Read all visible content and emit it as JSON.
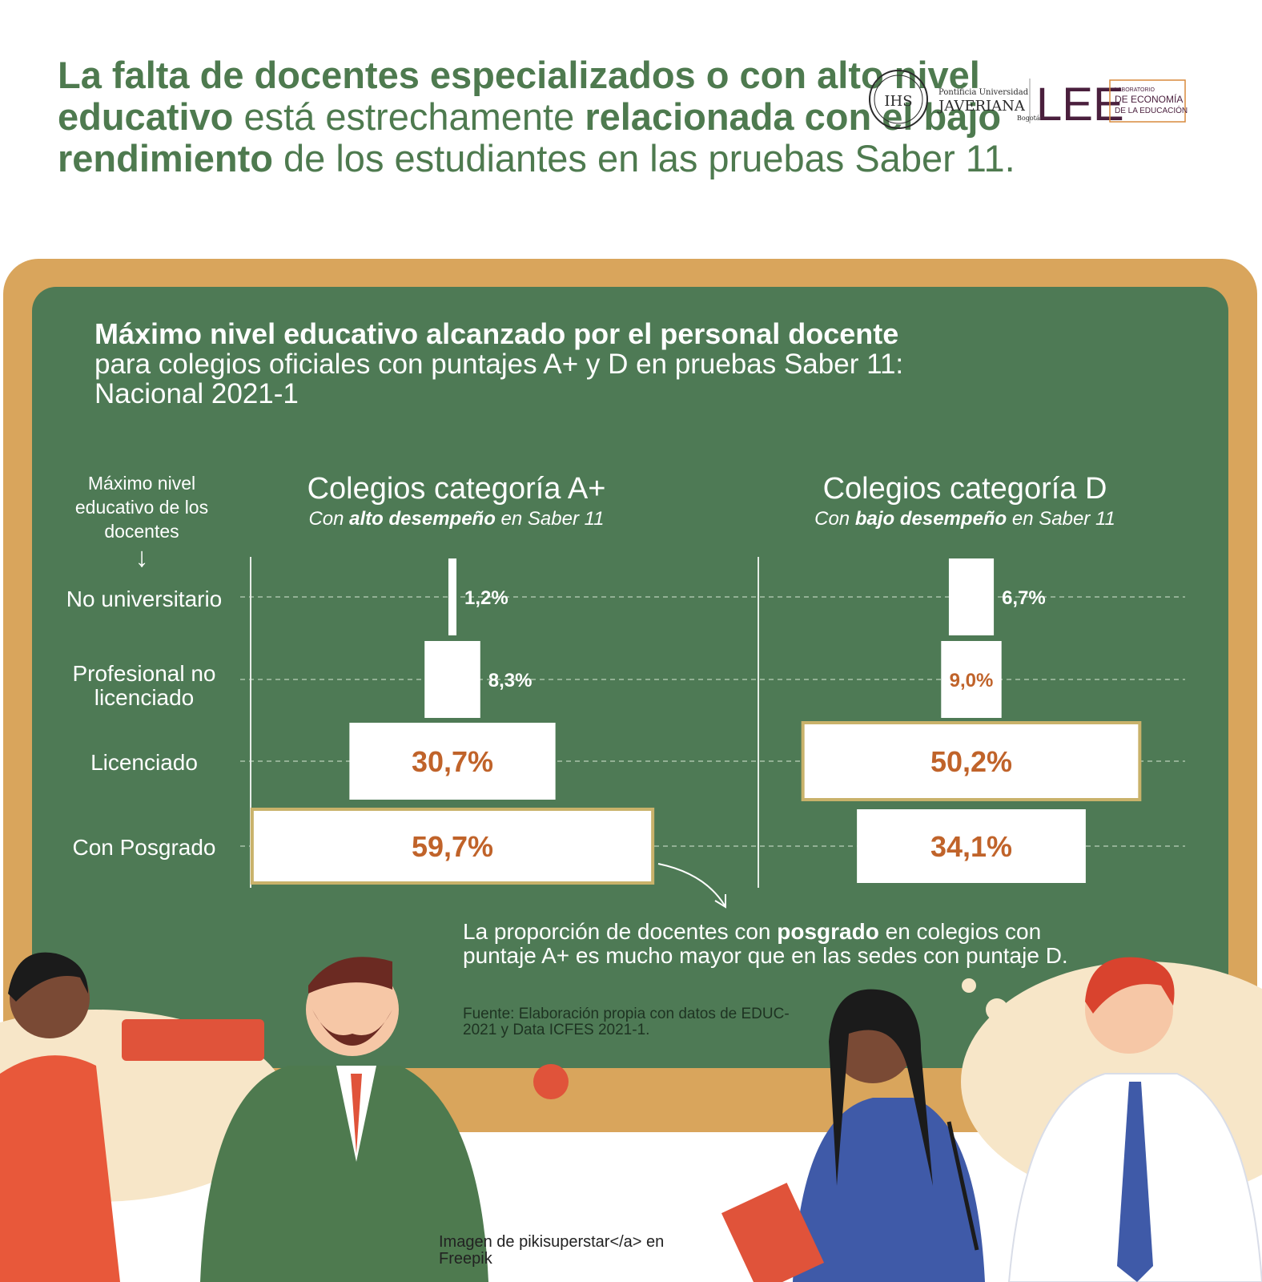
{
  "headline": {
    "p1_bold": "La falta de docentes especializados o con alto nivel educativo",
    "p2": " está estrechamente ",
    "p3_bold": "relacionada con el bajo rendimiento",
    "p4": " de los estudiantes en las pruebas Saber 11."
  },
  "logos": {
    "javeriana_line1": "Pontificia Universidad",
    "javeriana_line2": "JAVERIANA",
    "javeriana_line3": "Bogotá",
    "seal": "IHS",
    "lee": "LEE",
    "lee_small": "LABORATORIO",
    "lee_line1": "DE ECONOMÍA",
    "lee_line2": "DE LA EDUCACIÓN",
    "colors": {
      "javeriana": "#2b2b2b",
      "lee": "#4a1f3d",
      "lee_accent": "#d98a3d"
    }
  },
  "chart_data": {
    "type": "bar",
    "title": "Máximo nivel educativo alcanzado por el personal docente",
    "subtitle": "para colegios oficiales con puntajes A+ y D en pruebas Saber 11: Nacional 2021-1",
    "ylabel": "Máximo nivel educativo de los docentes",
    "categories": [
      "No universitario",
      "Profesional no licenciado",
      "Licenciado",
      "Con Posgrado"
    ],
    "series": [
      {
        "name": "Colegios categoría A+",
        "subtitle_pre": "Con ",
        "subtitle_bold": "alto desempeño",
        "subtitle_post": " en Saber 11",
        "values": [
          1.2,
          8.3,
          30.7,
          59.7
        ],
        "labels": [
          "1,2%",
          "8,3%",
          "30,7%",
          "59,7%"
        ],
        "highlight": [
          false,
          false,
          false,
          true
        ]
      },
      {
        "name": "Colegios categoría D",
        "subtitle_pre": "Con ",
        "subtitle_bold": "bajo desempeño",
        "subtitle_post": " en Saber 11",
        "values": [
          6.7,
          9.0,
          50.2,
          34.1
        ],
        "labels": [
          "6,7%",
          "9,0%",
          "50,2%",
          "34,1%"
        ],
        "highlight": [
          false,
          false,
          true,
          false
        ]
      }
    ],
    "colors": {
      "bar": "#ffffff",
      "value_text": "#c0632a",
      "highlight_border": "#c9b26a",
      "board": "#4e7a55"
    }
  },
  "note": {
    "pre": "La proporción de docentes con ",
    "bold": "posgrado",
    "post": " en colegios con puntaje A+ es mucho mayor que en las sedes con puntaje D."
  },
  "source": "Fuente: Elaboración propia con datos de EDUC-2021 y Data ICFES 2021-1.",
  "credit": "Imagen de pikisuperstar</a> en Freepik"
}
